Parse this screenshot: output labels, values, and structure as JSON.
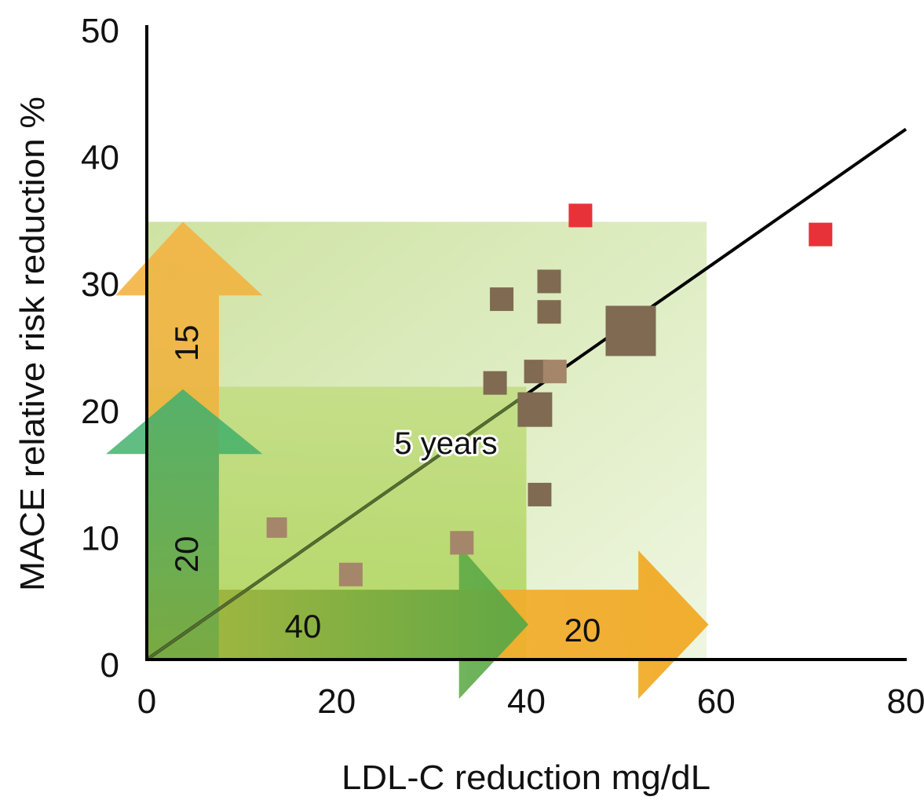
{
  "chart_data": {
    "type": "scatter",
    "title": "",
    "xlabel": "LDL-C reduction mg/dL",
    "ylabel": "MACE relative risk reduction %",
    "xlim": [
      0,
      80
    ],
    "ylim": [
      0,
      50
    ],
    "x_ticks": [
      "0",
      "20",
      "40",
      "60",
      "80"
    ],
    "y_ticks": [
      "0",
      "10",
      "20",
      "30",
      "40",
      "50"
    ],
    "grid": false,
    "regression_line": {
      "from": [
        0,
        0
      ],
      "to": [
        80,
        41.8
      ],
      "color": "#000000"
    },
    "points": [
      {
        "x": 45.7,
        "y": 35.0,
        "size": "medium",
        "color": "#e8323a",
        "group": "highlight"
      },
      {
        "x": 71.0,
        "y": 33.5,
        "size": "medium",
        "color": "#e8323a",
        "group": "highlight"
      },
      {
        "x": 42.4,
        "y": 29.8,
        "size": "medium",
        "color": "#806a52",
        "group": "dark"
      },
      {
        "x": 37.4,
        "y": 28.4,
        "size": "medium",
        "color": "#806a52",
        "group": "dark"
      },
      {
        "x": 42.4,
        "y": 27.4,
        "size": "medium",
        "color": "#806a52",
        "group": "dark"
      },
      {
        "x": 51.0,
        "y": 25.9,
        "size": "large",
        "color": "#806a52",
        "group": "dark"
      },
      {
        "x": 41.0,
        "y": 22.7,
        "size": "medium",
        "color": "#806a52",
        "group": "dark"
      },
      {
        "x": 43.0,
        "y": 22.7,
        "size": "medium",
        "color": "#a5866a",
        "group": "light"
      },
      {
        "x": 36.7,
        "y": 21.8,
        "size": "medium",
        "color": "#806a52",
        "group": "dark"
      },
      {
        "x": 40.9,
        "y": 19.7,
        "size": "mediumlarge",
        "color": "#806a52",
        "group": "dark"
      },
      {
        "x": 41.4,
        "y": 13.0,
        "size": "medium",
        "color": "#806a52",
        "group": "dark"
      },
      {
        "x": 13.7,
        "y": 10.4,
        "size": "small",
        "color": "#a5866a",
        "group": "light"
      },
      {
        "x": 33.2,
        "y": 9.2,
        "size": "medium",
        "color": "#a5866a",
        "group": "light"
      },
      {
        "x": 21.5,
        "y": 6.7,
        "size": "medium",
        "color": "#a5866a",
        "group": "light"
      }
    ],
    "regions": [
      {
        "name": "outer-region",
        "x": [
          0,
          59
        ],
        "y": [
          0,
          34.5
        ],
        "color": "#cde3a2"
      },
      {
        "name": "inner-region",
        "x": [
          0,
          40
        ],
        "y": [
          0,
          21.5
        ],
        "color": "#b9d970"
      }
    ],
    "arrows": [
      {
        "name": "green-horizontal",
        "direction": "right",
        "label": "40",
        "color": "#5aa94a"
      },
      {
        "name": "orange-horizontal",
        "direction": "right",
        "label": "20",
        "color": "#f0a822"
      },
      {
        "name": "green-vertical",
        "direction": "up",
        "label": "20",
        "color": "#3fa65a"
      },
      {
        "name": "orange-vertical",
        "direction": "up",
        "label": "15",
        "color": "#f0a822"
      }
    ],
    "annotation": "5 years"
  }
}
